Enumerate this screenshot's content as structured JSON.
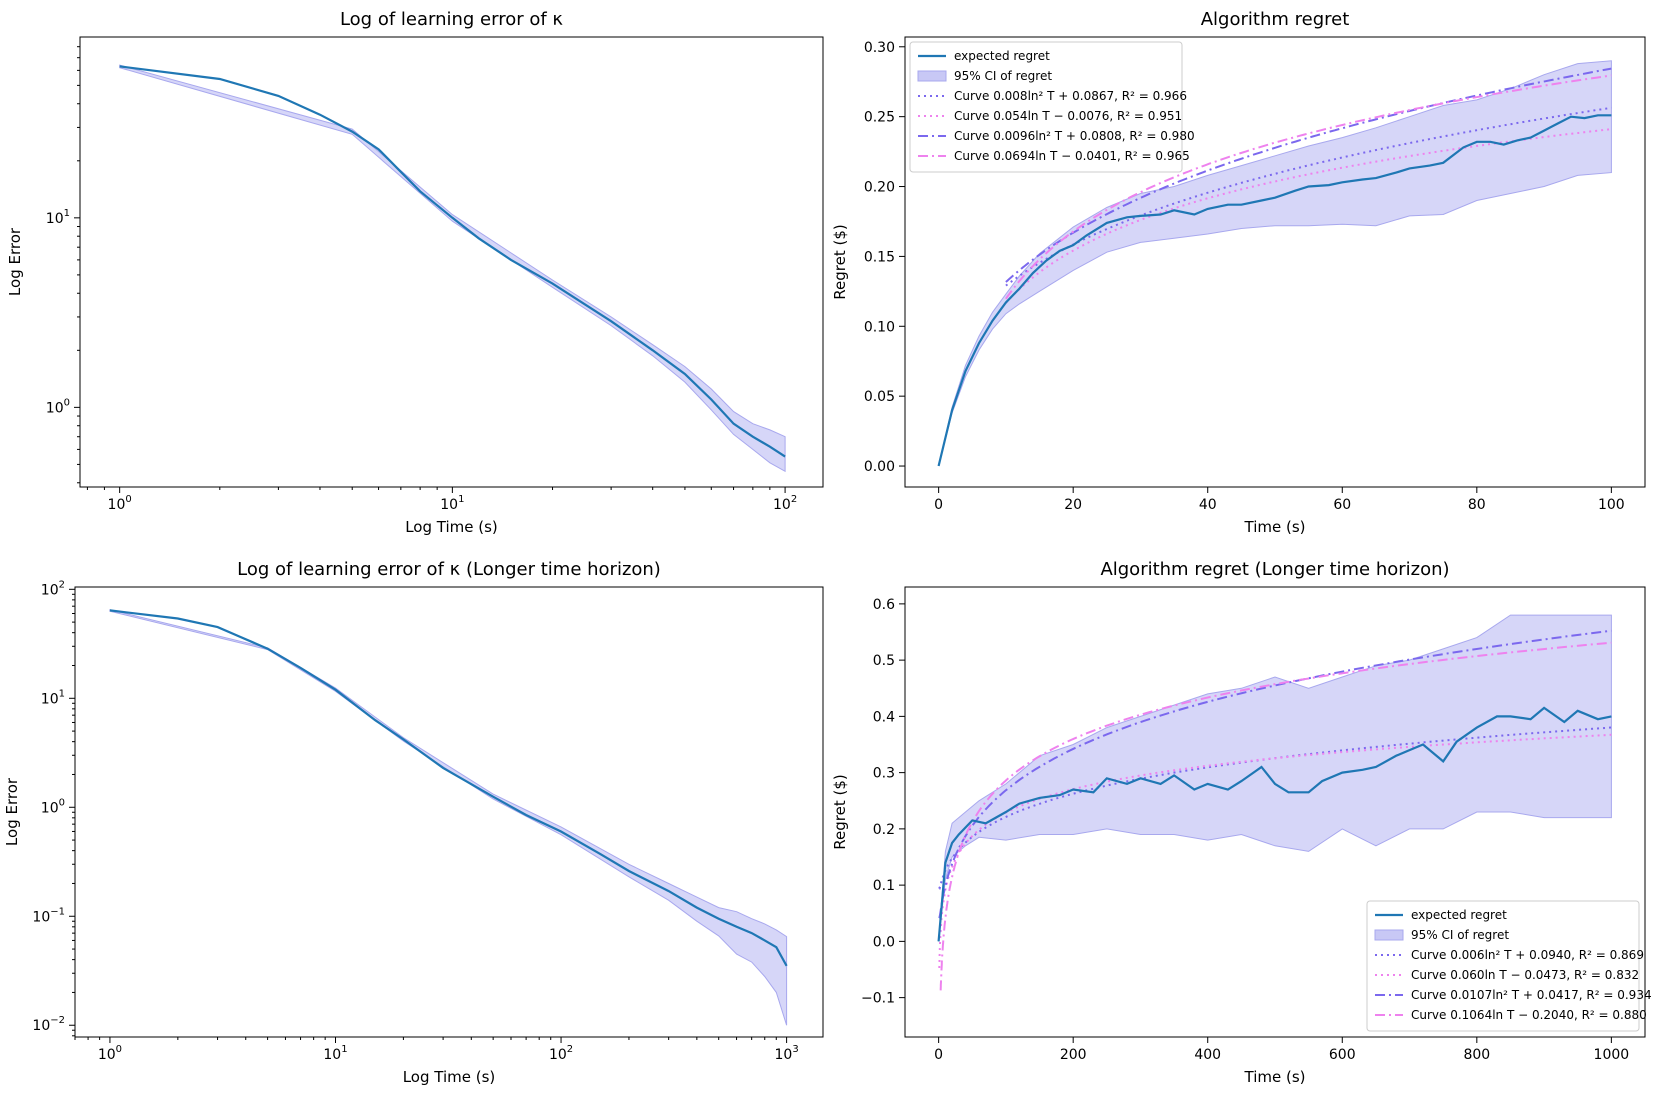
{
  "colors": {
    "mean": "#1f77b4",
    "band": "#c8c8f5",
    "band_edge": "#a8a8ee",
    "fit_purple": "#7b68ee",
    "fit_pink": "#ee82ee"
  },
  "chart_data": [
    {
      "id": "tl",
      "type": "line",
      "title": "Log of learning error of κ",
      "xlabel": "Log Time (s)",
      "ylabel": "Log Error",
      "xscale": "log",
      "yscale": "log",
      "xlim": [
        0.76,
        130
      ],
      "ylim": [
        0.38,
        90
      ],
      "xticks": [
        {
          "v": 1,
          "label": "10",
          "exp": "0"
        },
        {
          "v": 10,
          "label": "10",
          "exp": "1"
        },
        {
          "v": 100,
          "label": "10",
          "exp": "2"
        }
      ],
      "yticks": [
        {
          "v": 1,
          "label": "10",
          "exp": "0"
        },
        {
          "v": 10,
          "label": "10",
          "exp": "1"
        }
      ],
      "mean": {
        "x": [
          1,
          2,
          3,
          4,
          5,
          6,
          7,
          8,
          10,
          12,
          15,
          20,
          25,
          30,
          40,
          50,
          60,
          70,
          80,
          90,
          100
        ],
        "y": [
          63,
          54,
          44,
          35,
          28.5,
          23,
          17.5,
          13.8,
          10,
          7.8,
          6,
          4.5,
          3.5,
          2.85,
          2,
          1.5,
          1.1,
          0.82,
          0.7,
          0.62,
          0.55
        ]
      },
      "band": {
        "x": [
          1,
          5,
          10,
          20,
          30,
          40,
          50,
          60,
          70,
          80,
          90,
          100
        ],
        "lower": [
          62,
          27.6,
          9.6,
          4.3,
          2.7,
          1.87,
          1.36,
          0.97,
          0.72,
          0.6,
          0.51,
          0.46
        ],
        "upper": [
          64,
          29.4,
          10.4,
          4.7,
          3,
          2.14,
          1.64,
          1.25,
          0.95,
          0.82,
          0.76,
          0.7
        ]
      }
    },
    {
      "id": "tr",
      "type": "line",
      "title": "Algorithm regret",
      "xlabel": "Time (s)",
      "ylabel": "Regret ($)",
      "xscale": "linear",
      "yscale": "linear",
      "xlim": [
        -5,
        105
      ],
      "ylim": [
        -0.015,
        0.307
      ],
      "xticks": [
        0,
        20,
        40,
        60,
        80,
        100
      ],
      "yticks": [
        "0.00",
        "0.05",
        "0.10",
        "0.15",
        "0.20",
        "0.25",
        "0.30"
      ],
      "legend_loc": "upper-left",
      "mean": {
        "x": [
          0,
          2,
          4,
          6,
          8,
          10,
          12,
          14,
          16,
          18,
          20,
          22,
          25,
          28,
          30,
          33,
          35,
          38,
          40,
          43,
          45,
          48,
          50,
          53,
          55,
          58,
          60,
          63,
          65,
          68,
          70,
          73,
          75,
          78,
          80,
          82,
          84,
          86,
          88,
          90,
          92,
          94,
          96,
          98,
          100
        ],
        "y": [
          0.0,
          0.04,
          0.068,
          0.088,
          0.104,
          0.117,
          0.127,
          0.138,
          0.147,
          0.154,
          0.158,
          0.165,
          0.174,
          0.178,
          0.179,
          0.18,
          0.183,
          0.18,
          0.184,
          0.187,
          0.187,
          0.19,
          0.192,
          0.197,
          0.2,
          0.201,
          0.203,
          0.205,
          0.206,
          0.21,
          0.213,
          0.215,
          0.217,
          0.228,
          0.232,
          0.232,
          0.23,
          0.233,
          0.235,
          0.24,
          0.245,
          0.25,
          0.249,
          0.251,
          0.251
        ]
      },
      "band": {
        "x": [
          0,
          2,
          4,
          6,
          8,
          10,
          12,
          15,
          20,
          25,
          30,
          35,
          40,
          45,
          50,
          55,
          60,
          65,
          70,
          75,
          80,
          85,
          90,
          95,
          100
        ],
        "lower": [
          0.0,
          0.038,
          0.064,
          0.083,
          0.098,
          0.109,
          0.116,
          0.125,
          0.14,
          0.153,
          0.16,
          0.163,
          0.166,
          0.17,
          0.172,
          0.172,
          0.173,
          0.172,
          0.179,
          0.18,
          0.19,
          0.195,
          0.2,
          0.208,
          0.21
        ],
        "upper": [
          0.0,
          0.042,
          0.072,
          0.093,
          0.11,
          0.123,
          0.136,
          0.152,
          0.171,
          0.185,
          0.195,
          0.2,
          0.208,
          0.215,
          0.222,
          0.229,
          0.235,
          0.242,
          0.25,
          0.258,
          0.262,
          0.27,
          0.28,
          0.288,
          0.29
        ]
      },
      "fits": [
        {
          "label": "Curve 0.008ln² T + 0.0867, R² = 0.966",
          "kind": "sq",
          "a": 0.008,
          "b": 0.0867,
          "color": "fit_purple",
          "dash": "dot",
          "from": 10
        },
        {
          "label": "Curve 0.054ln T − 0.0076, R² = 0.951",
          "kind": "ln",
          "a": 0.054,
          "b": -0.0076,
          "color": "fit_pink",
          "dash": "dot",
          "from": 10
        },
        {
          "label": "Curve 0.0096ln² T + 0.0808, R² = 0.980",
          "kind": "sq",
          "a": 0.0096,
          "b": 0.0808,
          "color": "fit_purple",
          "dash": "dashdot",
          "from": 10
        },
        {
          "label": "Curve 0.0694ln T − 0.0401, R² = 0.965",
          "kind": "ln",
          "a": 0.0694,
          "b": -0.0401,
          "color": "fit_pink",
          "dash": "dashdot",
          "from": 10
        }
      ],
      "legend_mean": "expected regret",
      "legend_band": "95% CI of regret"
    },
    {
      "id": "bl",
      "type": "line",
      "title": "Log of learning error of κ (Longer time horizon)",
      "xlabel": "Log Time (s)",
      "ylabel": "Log Error",
      "xscale": "log",
      "yscale": "log",
      "xlim": [
        0.7,
        1450
      ],
      "ylim": [
        0.0078,
        105
      ],
      "xticks": [
        {
          "v": 1,
          "label": "10",
          "exp": "0"
        },
        {
          "v": 10,
          "label": "10",
          "exp": "1"
        },
        {
          "v": 100,
          "label": "10",
          "exp": "2"
        },
        {
          "v": 1000,
          "label": "10",
          "exp": "3"
        }
      ],
      "yticks": [
        {
          "v": 0.01,
          "label": "10",
          "exp": "−2"
        },
        {
          "v": 0.1,
          "label": "10",
          "exp": "−1"
        },
        {
          "v": 1,
          "label": "10",
          "exp": "0"
        },
        {
          "v": 10,
          "label": "10",
          "exp": "1"
        },
        {
          "v": 100,
          "label": "10",
          "exp": "2"
        }
      ],
      "mean": {
        "x": [
          1,
          2,
          3,
          5,
          7,
          10,
          15,
          20,
          30,
          50,
          70,
          100,
          150,
          200,
          300,
          400,
          500,
          600,
          700,
          800,
          900,
          1000
        ],
        "y": [
          64,
          54,
          45,
          28.5,
          19,
          12,
          6.3,
          4.2,
          2.3,
          1.25,
          0.85,
          0.6,
          0.37,
          0.26,
          0.17,
          0.12,
          0.095,
          0.08,
          0.07,
          0.06,
          0.052,
          0.035
        ]
      },
      "band": {
        "x": [
          1,
          5,
          10,
          20,
          50,
          100,
          200,
          300,
          400,
          500,
          600,
          700,
          800,
          900,
          1000
        ],
        "lower": [
          63,
          28,
          11.6,
          4.05,
          1.19,
          0.56,
          0.23,
          0.14,
          0.09,
          0.066,
          0.045,
          0.038,
          0.028,
          0.02,
          0.01
        ],
        "upper": [
          65,
          29,
          12.4,
          4.35,
          1.32,
          0.66,
          0.3,
          0.2,
          0.15,
          0.12,
          0.11,
          0.095,
          0.085,
          0.075,
          0.065
        ]
      }
    },
    {
      "id": "br",
      "type": "line",
      "title": "Algorithm regret (Longer time horizon)",
      "xlabel": "Time (s)",
      "ylabel": "Regret ($)",
      "xscale": "linear",
      "yscale": "linear",
      "xlim": [
        -50,
        1050
      ],
      "ylim": [
        -0.17,
        0.63
      ],
      "xticks": [
        0,
        200,
        400,
        600,
        800,
        1000
      ],
      "yticks": [
        "−0.1",
        "0.0",
        "0.1",
        "0.2",
        "0.3",
        "0.4",
        "0.5",
        "0.6"
      ],
      "legend_loc": "lower-right",
      "mean": {
        "x": [
          0,
          10,
          20,
          30,
          50,
          70,
          100,
          120,
          150,
          180,
          200,
          230,
          250,
          280,
          300,
          330,
          350,
          380,
          400,
          430,
          450,
          480,
          500,
          520,
          550,
          570,
          600,
          630,
          650,
          680,
          700,
          720,
          750,
          770,
          800,
          830,
          850,
          880,
          900,
          930,
          950,
          980,
          1000
        ],
        "y": [
          0.0,
          0.14,
          0.175,
          0.19,
          0.215,
          0.21,
          0.23,
          0.245,
          0.255,
          0.26,
          0.27,
          0.265,
          0.29,
          0.28,
          0.29,
          0.28,
          0.295,
          0.27,
          0.28,
          0.27,
          0.285,
          0.31,
          0.28,
          0.265,
          0.265,
          0.285,
          0.3,
          0.305,
          0.31,
          0.33,
          0.34,
          0.35,
          0.32,
          0.355,
          0.38,
          0.4,
          0.4,
          0.395,
          0.415,
          0.39,
          0.41,
          0.395,
          0.4
        ]
      },
      "band": {
        "x": [
          0,
          10,
          20,
          40,
          60,
          100,
          150,
          200,
          250,
          300,
          350,
          400,
          450,
          500,
          550,
          600,
          650,
          700,
          750,
          800,
          850,
          900,
          950,
          1000
        ],
        "lower": [
          0.0,
          0.11,
          0.15,
          0.17,
          0.185,
          0.18,
          0.19,
          0.19,
          0.2,
          0.19,
          0.19,
          0.18,
          0.19,
          0.17,
          0.16,
          0.2,
          0.17,
          0.2,
          0.2,
          0.23,
          0.23,
          0.22,
          0.22,
          0.22
        ],
        "upper": [
          0.0,
          0.16,
          0.21,
          0.23,
          0.25,
          0.28,
          0.33,
          0.35,
          0.38,
          0.4,
          0.42,
          0.44,
          0.45,
          0.47,
          0.45,
          0.47,
          0.49,
          0.5,
          0.52,
          0.54,
          0.58,
          0.58,
          0.58,
          0.58
        ]
      },
      "fits": [
        {
          "label": "Curve 0.006ln² T + 0.0940, R² = 0.869",
          "kind": "sq",
          "a": 0.006,
          "b": 0.094,
          "color": "fit_purple",
          "dash": "dot",
          "from": 1
        },
        {
          "label": "Curve 0.060ln T − 0.0473, R² = 0.832",
          "kind": "ln",
          "a": 0.06,
          "b": -0.0473,
          "color": "fit_pink",
          "dash": "dot",
          "from": 1
        },
        {
          "label": "Curve 0.0107ln² T + 0.0417, R² = 0.934",
          "kind": "sq",
          "a": 0.0107,
          "b": 0.0417,
          "color": "fit_purple",
          "dash": "dashdot",
          "from": 1
        },
        {
          "label": "Curve 0.1064ln T − 0.2040, R² = 0.880",
          "kind": "ln",
          "a": 0.1064,
          "b": -0.204,
          "color": "fit_pink",
          "dash": "dashdot",
          "from": 3
        }
      ],
      "legend_mean": "expected regret",
      "legend_band": "95% CI of regret"
    }
  ]
}
